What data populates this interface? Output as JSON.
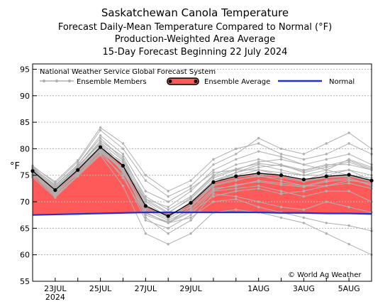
{
  "chart_data": {
    "type": "line",
    "title_lines": [
      "Saskatchewan Canola Temperature",
      "Forecast Daily-Mean Temperature Compared to Normal (°F)",
      "Production-Weighted Area Average",
      "15-Day Forecast Beginning 22 July 2024"
    ],
    "ylabel": "°F",
    "ylim": [
      55,
      96
    ],
    "xlim": [
      22,
      37
    ],
    "yticks": [
      55,
      60,
      65,
      70,
      75,
      80,
      85,
      90,
      95
    ],
    "xticks": [
      {
        "x": 23,
        "label": "23JUL",
        "sub": "2024"
      },
      {
        "x": 25,
        "label": "25JUL",
        "sub": ""
      },
      {
        "x": 27,
        "label": "27JUL",
        "sub": ""
      },
      {
        "x": 29,
        "label": "29JUL",
        "sub": ""
      },
      {
        "x": 32,
        "label": "1AUG",
        "sub": ""
      },
      {
        "x": 34,
        "label": "3AUG",
        "sub": ""
      },
      {
        "x": 36,
        "label": "5AUG",
        "sub": ""
      }
    ],
    "legend": {
      "header": "National Weather Service Global Forecast System",
      "members": "Ensemble Members",
      "average": "Ensemble Average",
      "normal": "Normal"
    },
    "credit": "© World Ag Weather",
    "colors": {
      "fill": "#ff5a5a",
      "normal": "#2233cc",
      "members": "#b0b0b0",
      "average": "#000000"
    },
    "x": [
      22,
      23,
      24,
      25,
      26,
      27,
      28,
      29,
      30,
      31,
      32,
      33,
      34,
      35,
      36,
      37
    ],
    "series": [
      {
        "name": "Ensemble Average",
        "values": [
          75.8,
          72.2,
          76.0,
          80.3,
          76.8,
          69.2,
          67.3,
          69.8,
          73.7,
          74.8,
          75.4,
          75.0,
          74.2,
          74.8,
          75.1,
          74.0
        ]
      },
      {
        "name": "Normal",
        "values": [
          67.5,
          67.6,
          67.7,
          67.8,
          67.9,
          68.0,
          68.0,
          68.0,
          68.0,
          68.0,
          68.0,
          67.9,
          67.9,
          67.8,
          67.8,
          67.7
        ]
      }
    ],
    "members": [
      [
        76.0,
        72.5,
        76.5,
        81.0,
        77.0,
        70.0,
        67.0,
        70.0,
        74.0,
        75.0,
        76.0,
        75.5,
        75.0,
        75.0,
        76.0,
        74.0
      ],
      [
        75.5,
        71.5,
        75.5,
        79.5,
        76.0,
        68.0,
        66.0,
        69.0,
        73.0,
        74.0,
        75.0,
        74.0,
        73.0,
        74.0,
        74.5,
        73.0
      ],
      [
        76.5,
        73.0,
        77.0,
        82.0,
        78.0,
        71.0,
        68.5,
        71.0,
        75.0,
        77.0,
        78.0,
        77.0,
        76.0,
        77.0,
        77.0,
        76.0
      ],
      [
        75.0,
        71.0,
        75.0,
        79.0,
        75.0,
        66.5,
        65.0,
        67.5,
        72.0,
        72.5,
        73.0,
        72.0,
        71.0,
        72.0,
        72.0,
        70.0
      ],
      [
        76.8,
        73.5,
        77.5,
        83.5,
        80.0,
        74.0,
        71.0,
        73.0,
        77.0,
        79.0,
        82.0,
        80.0,
        79.0,
        81.0,
        83.0,
        80.0
      ],
      [
        75.2,
        72.0,
        76.0,
        80.0,
        77.0,
        69.0,
        67.5,
        69.0,
        73.5,
        75.5,
        77.0,
        76.0,
        75.0,
        76.0,
        78.0,
        76.5
      ],
      [
        76.2,
        72.8,
        76.5,
        81.5,
        78.5,
        70.5,
        68.0,
        70.5,
        74.5,
        76.0,
        77.5,
        78.0,
        77.0,
        78.0,
        79.0,
        77.0
      ],
      [
        74.8,
        71.8,
        75.2,
        79.2,
        76.5,
        67.0,
        64.0,
        66.5,
        71.5,
        71.0,
        70.0,
        69.0,
        68.5,
        70.0,
        69.0,
        68.0
      ],
      [
        76.0,
        72.2,
        76.3,
        80.5,
        75.5,
        68.5,
        66.5,
        68.5,
        72.5,
        73.0,
        74.0,
        73.5,
        73.0,
        73.0,
        73.5,
        72.5
      ],
      [
        75.5,
        72.6,
        76.8,
        80.8,
        76.0,
        70.5,
        69.0,
        72.0,
        76.0,
        78.0,
        79.5,
        78.5,
        77.0,
        76.0,
        75.0,
        74.5
      ],
      [
        76.4,
        73.2,
        77.0,
        82.5,
        79.0,
        72.0,
        70.0,
        72.5,
        75.5,
        76.0,
        76.0,
        75.0,
        74.0,
        75.5,
        76.0,
        75.0
      ],
      [
        75.0,
        71.2,
        75.0,
        79.8,
        76.0,
        68.0,
        66.0,
        68.0,
        71.0,
        72.0,
        72.5,
        71.5,
        72.0,
        73.0,
        74.0,
        73.5
      ],
      [
        76.1,
        72.4,
        76.2,
        80.2,
        77.5,
        69.5,
        67.0,
        70.0,
        74.0,
        75.5,
        76.5,
        77.0,
        75.5,
        76.5,
        77.5,
        76.0
      ],
      [
        75.6,
        71.6,
        75.6,
        79.6,
        74.5,
        67.5,
        66.0,
        67.0,
        70.0,
        70.5,
        69.0,
        68.0,
        67.0,
        66.0,
        65.5,
        64.5
      ],
      [
        76.6,
        73.8,
        77.8,
        84.0,
        81.0,
        75.0,
        72.0,
        74.0,
        78.0,
        80.0,
        81.0,
        79.0,
        78.0,
        79.0,
        81.0,
        79.0
      ],
      [
        75.3,
        71.4,
        75.4,
        79.9,
        76.2,
        68.8,
        66.8,
        69.2,
        73.2,
        74.2,
        74.8,
        74.5,
        73.8,
        74.5,
        74.8,
        73.8
      ],
      [
        75.9,
        72.1,
        76.1,
        80.1,
        76.9,
        69.1,
        67.1,
        69.6,
        73.6,
        74.6,
        75.2,
        74.8,
        74.0,
        74.6,
        74.9,
        73.9
      ],
      [
        74.6,
        70.8,
        74.8,
        78.8,
        73.0,
        64.0,
        62.0,
        64.0,
        68.0,
        68.5,
        68.0,
        67.0,
        66.0,
        64.0,
        62.0,
        60.0
      ],
      [
        76.3,
        72.7,
        76.6,
        81.2,
        77.8,
        70.2,
        67.8,
        70.8,
        74.8,
        76.2,
        77.2,
        76.8,
        75.8,
        76.8,
        77.8,
        76.2
      ],
      [
        75.7,
        71.9,
        75.9,
        79.7,
        75.8,
        67.8,
        66.2,
        68.2,
        72.2,
        73.2,
        73.8,
        73.2,
        72.8,
        73.8,
        74.2,
        73.2
      ]
    ]
  }
}
